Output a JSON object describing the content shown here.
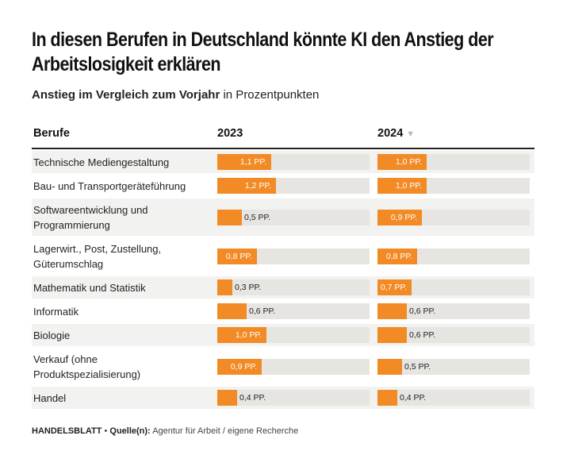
{
  "chart_data": {
    "type": "bar",
    "title": "In diesen Berufen in Deutschland könnte KI den Anstieg der Arbeitslosigkeit erklären",
    "subtitle_bold": "Anstieg im Vergleich zum Vorjahr",
    "subtitle_rest": "in Prozentpunkten",
    "column_header_categories": "Berufe",
    "sort_indicator": "▼",
    "unit_suffix": "PP.",
    "xlim": [
      0,
      3.1
    ],
    "categories": [
      "Technische Mediengestaltung",
      "Bau- und Transportgeräteführung",
      "Softwareentwicklung und Programmierung",
      "Lagerwirt., Post, Zustellung, Güterumschlag",
      "Mathematik und Statistik",
      "Informatik",
      "Biologie",
      "Verkauf (ohne Produktspezialisierung)",
      "Handel"
    ],
    "series": [
      {
        "name": "2023",
        "values": [
          1.1,
          1.2,
          0.5,
          0.8,
          0.3,
          0.6,
          1.0,
          0.9,
          0.4
        ],
        "labels": [
          "1,1 PP.",
          "1,2 PP.",
          "0,5 PP.",
          "0,8 PP.",
          "0,3 PP.",
          "0,6 PP.",
          "1,0 PP.",
          "0,9 PP.",
          "0,4 PP."
        ]
      },
      {
        "name": "2024",
        "values": [
          1.0,
          1.0,
          0.9,
          0.8,
          0.7,
          0.6,
          0.6,
          0.5,
          0.4
        ],
        "labels": [
          "1,0 PP.",
          "1,0 PP.",
          "0,9 PP.",
          "0,8 PP.",
          "0,7 PP.",
          "0,6 PP.",
          "0,6 PP.",
          "0,5 PP.",
          "0,4 PP."
        ]
      }
    ],
    "colors": {
      "bar": "#f28a25",
      "track": "#e6e5e1",
      "row_shade": "#f2f2f0"
    }
  },
  "footer": {
    "brand": "HANDELSBLATT",
    "separator": "•",
    "source_label": "Quelle(n):",
    "source_text": "Agentur für Arbeit / eigene Recherche"
  }
}
